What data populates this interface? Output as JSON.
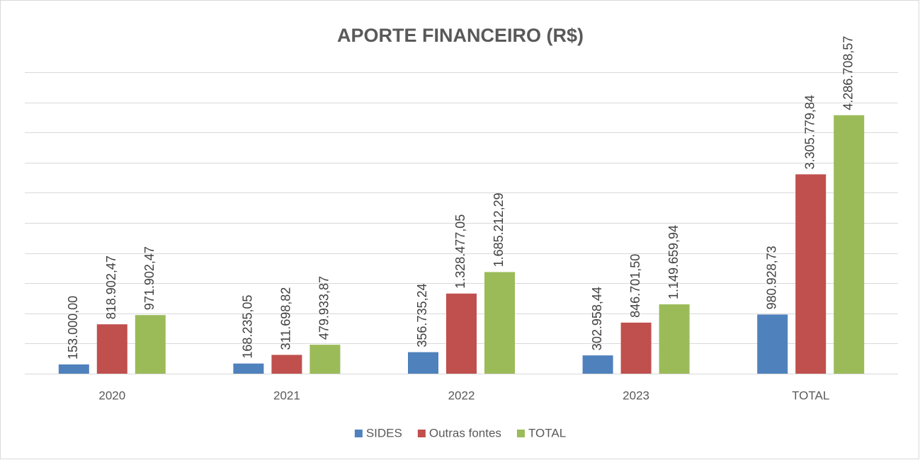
{
  "chart_data": {
    "type": "bar",
    "title": "APORTE FINANCEIRO (R$)",
    "categories": [
      "2020",
      "2021",
      "2022",
      "2023",
      "TOTAL"
    ],
    "series": [
      {
        "name": "SIDES",
        "color": "#4f81bd",
        "values": [
          153000.0,
          168235.05,
          356735.24,
          302958.44,
          980928.73
        ],
        "value_labels": [
          "153.000,00",
          "168.235,05",
          "356.735,24",
          "302.958,44",
          "980.928,73"
        ]
      },
      {
        "name": "Outras fontes",
        "color": "#c0504d",
        "values": [
          818902.47,
          311698.82,
          1328477.05,
          846701.5,
          3305779.84
        ],
        "value_labels": [
          "818.902,47",
          "311.698,82",
          "1.328.477,05",
          "846.701,50",
          "3.305.779,84"
        ]
      },
      {
        "name": "TOTAL",
        "color": "#9bbb59",
        "values": [
          971902.47,
          479933.87,
          1685212.29,
          1149659.94,
          4286708.57
        ],
        "value_labels": [
          "971.902,47",
          "479.933,87",
          "1.685.212,29",
          "1.149.659,94",
          "4.286.708,57"
        ]
      }
    ],
    "ylim": [
      0,
      5000000
    ],
    "yticks": [
      0,
      500000,
      1000000,
      1500000,
      2000000,
      2500000,
      3000000,
      3500000,
      4000000,
      4500000,
      5000000
    ],
    "grid": true,
    "legend": "bottom"
  }
}
